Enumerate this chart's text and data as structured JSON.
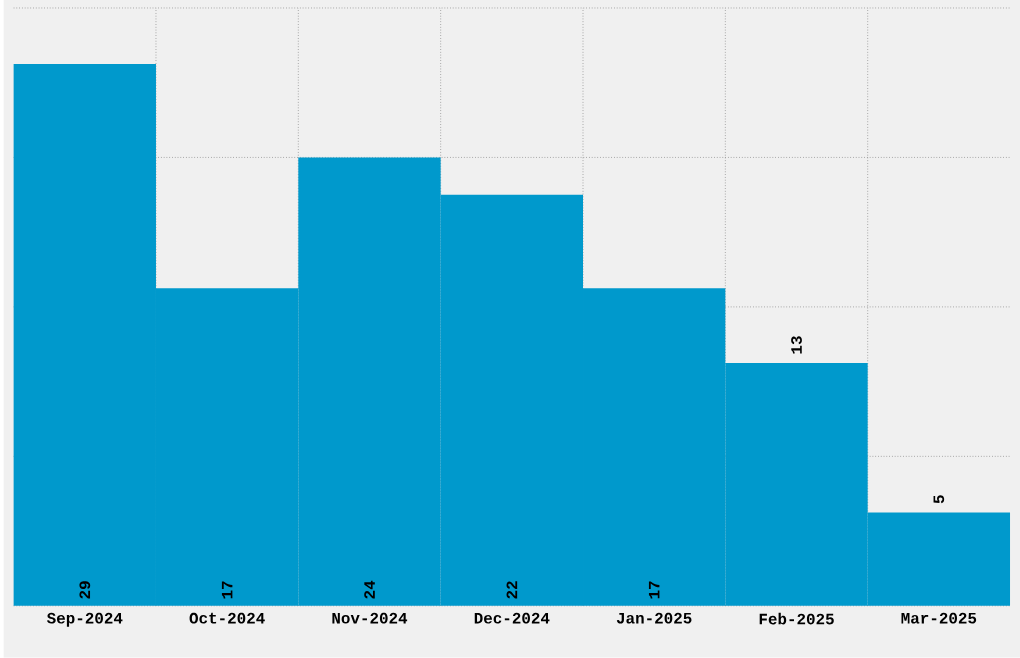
{
  "chart_data": {
    "type": "bar",
    "categories": [
      "Sep-2024",
      "Oct-2024",
      "Nov-2024",
      "Dec-2024",
      "Jan-2025",
      "Feb-2025",
      "Mar-2025"
    ],
    "values": [
      29,
      17,
      24,
      22,
      17,
      13,
      5
    ],
    "color": "#0099cc",
    "data_labels": true,
    "grid": true,
    "tick_labels": "x",
    "ylim": [
      0,
      32
    ],
    "yticks": [
      {
        "value": 0,
        "label": null
      },
      {
        "value": 8,
        "label": null
      },
      {
        "value": 16,
        "label": null
      },
      {
        "value": 24,
        "label": null
      },
      {
        "value": 32,
        "label": null
      }
    ]
  }
}
